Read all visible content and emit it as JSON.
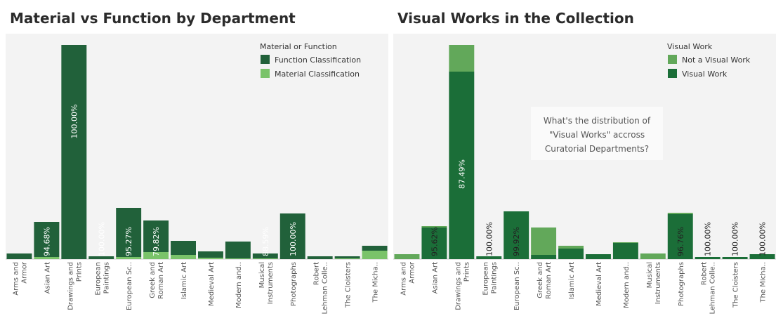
{
  "charts": [
    {
      "title": "Material vs Function by Department",
      "chart_data": {
        "type": "bar",
        "stacked": true,
        "categories": [
          [
            "Arms and",
            "Armor"
          ],
          [
            "Asian Art"
          ],
          [
            "Drawings and",
            "Prints"
          ],
          [
            "European",
            "Paintings"
          ],
          [
            "European Sc.."
          ],
          [
            "Greek and",
            "Roman Art"
          ],
          [
            "Islamic Art"
          ],
          [
            "Medieval Art"
          ],
          [
            "Modern and.."
          ],
          [
            "Musical",
            "Instruments"
          ],
          [
            "Photographs"
          ],
          [
            "Robert",
            "Lehman Colle.."
          ],
          [
            "The Cloisters"
          ],
          [
            "The Micha.."
          ]
        ],
        "series": [
          {
            "name": "Material Classification",
            "color": "#7ac36a",
            "values": [
              0,
              3,
              0,
              0,
              3,
              10,
              6,
              2,
              1,
              1,
              0,
              0,
              1,
              12
            ]
          },
          {
            "name": "Function Classification",
            "color": "#21613a",
            "values": [
              8,
              50,
              305,
              4,
              70,
              45,
              20,
              9,
              24,
              7,
              65,
              4,
              3,
              7
            ]
          }
        ],
        "bar_labels": [
          "",
          "94.68%",
          "100.00%",
          "100.00%",
          "95.27%",
          "79.82%",
          "",
          "",
          "",
          "88.59%",
          "100.00%",
          "",
          "",
          ""
        ],
        "ylim": [
          0,
          305
        ],
        "legend": {
          "title": "Material or Function",
          "entries": [
            "Function Classification",
            "Material Classification"
          ],
          "colors": [
            "#21613a",
            "#7ac36a"
          ],
          "placement": "top-right"
        },
        "xlabel": "",
        "ylabel": ""
      }
    },
    {
      "title": "Visual Works in the Collection",
      "chart_data": {
        "type": "bar",
        "stacked": true,
        "categories": [
          [
            "Arms and",
            "Armor"
          ],
          [
            "Asian Art"
          ],
          [
            "Drawings and",
            "Prints"
          ],
          [
            "European",
            "Paintings"
          ],
          [
            "European Sc.."
          ],
          [
            "Greek and",
            "Roman Art"
          ],
          [
            "Islamic Art"
          ],
          [
            "Medieval Art"
          ],
          [
            "Modern and.."
          ],
          [
            "Musical",
            "Instruments"
          ],
          [
            "Photographs"
          ],
          [
            "Robert",
            "Lehman Colle.."
          ],
          [
            "The Cloisters"
          ],
          [
            "The Micha.."
          ]
        ],
        "series": [
          {
            "name": "Visual Work",
            "color": "#1b6e38",
            "values": [
              0,
              45,
              267,
              4,
              68,
              6,
              15,
              7,
              23,
              0,
              64,
              3,
              3,
              7
            ]
          },
          {
            "name": "Not a Visual Work",
            "color": "#62a85a",
            "values": [
              7,
              2,
              38,
              0,
              0,
              39,
              4,
              0,
              1,
              8,
              2,
              0,
              0,
              0
            ]
          }
        ],
        "bar_labels": [
          "",
          "95.62%",
          "87.49%",
          "100.00%",
          "99.92%",
          "",
          "",
          "",
          "",
          "",
          "96.76%",
          "100.00%",
          "100.00%",
          "100.00%"
        ],
        "ylim": [
          0,
          305
        ],
        "legend": {
          "title": "Visual Work",
          "entries": [
            "Not a Visual Work",
            "Visual Work"
          ],
          "colors": [
            "#62a85a",
            "#1b6e38"
          ],
          "placement": "top-right"
        },
        "annotation": "What's the distribution of\n\"Visual Works\" accross\nCuratorial Departments?",
        "xlabel": "",
        "ylabel": ""
      }
    }
  ]
}
